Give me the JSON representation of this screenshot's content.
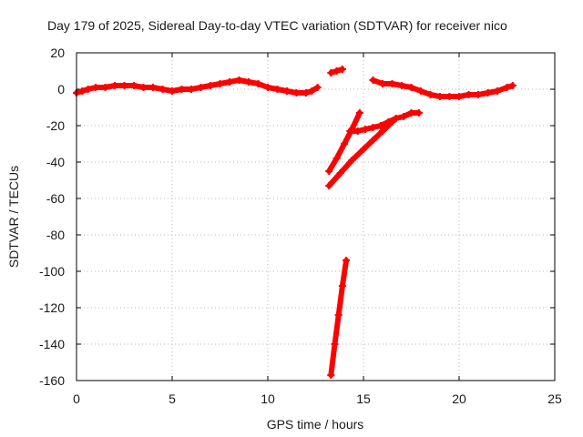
{
  "chart_data": {
    "type": "scatter",
    "title": "Day 179 of 2025, Sidereal Day-to-day VTEC variation (SDTVAR) for receiver nico",
    "xlabel": "GPS time / hours",
    "ylabel": "SDTVAR / TECUs",
    "xlim": [
      0,
      25
    ],
    "ylim": [
      -160,
      20
    ],
    "xticks": [
      0,
      5,
      10,
      15,
      20,
      25
    ],
    "yticks": [
      20,
      0,
      -20,
      -40,
      -60,
      -80,
      -100,
      -120,
      -140,
      -160
    ],
    "grid": true,
    "marker_color": "#ff0000",
    "marker": "plus",
    "series": [
      {
        "x": [
          0.0,
          0.3,
          0.6,
          1.0,
          1.5,
          2.0,
          2.5,
          3.0,
          3.5,
          4.0,
          4.5,
          5.0,
          5.5,
          6.0,
          6.5,
          7.0,
          7.5,
          8.0,
          8.5,
          9.0,
          9.5,
          10.0,
          10.5,
          11.0,
          11.5,
          12.0,
          12.3,
          12.6
        ],
        "y": [
          -2,
          -1,
          0,
          1,
          1,
          2,
          2,
          2,
          1,
          1,
          0,
          -1,
          0,
          0,
          1,
          2,
          3,
          4,
          5,
          4,
          3,
          1,
          0,
          -1,
          -2,
          -2,
          -1,
          1
        ]
      },
      {
        "x": [
          13.3,
          13.6,
          13.9
        ],
        "y": [
          9,
          10,
          11
        ]
      },
      {
        "x": [
          15.5,
          16.0,
          16.5,
          17.0,
          17.5,
          18.0,
          18.5,
          19.0,
          19.5,
          20.0,
          20.5,
          21.0,
          21.5,
          22.0,
          22.5,
          22.8
        ],
        "y": [
          5,
          3,
          3,
          2,
          1,
          -1,
          -3,
          -4,
          -4,
          -4,
          -3,
          -3,
          -2,
          -1,
          1,
          2
        ]
      },
      {
        "x": [
          13.2,
          13.6,
          14.0,
          14.4,
          14.8
        ],
        "y": [
          -45,
          -38,
          -30,
          -22,
          -13
        ]
      },
      {
        "x": [
          14.3,
          14.7,
          15.1,
          15.5,
          15.9,
          16.3,
          16.7,
          17.1,
          17.5,
          17.9
        ],
        "y": [
          -23,
          -23,
          -22,
          -21,
          -20,
          -18,
          -16,
          -15,
          -13,
          -13
        ]
      },
      {
        "x": [
          13.2,
          13.8,
          14.4,
          15.0,
          15.5,
          16.0,
          16.5
        ],
        "y": [
          -53,
          -46,
          -39,
          -33,
          -28,
          -23,
          -18
        ]
      },
      {
        "x": [
          13.3,
          13.5,
          13.7,
          13.9,
          14.1
        ],
        "y": [
          -157,
          -140,
          -124,
          -108,
          -94
        ]
      }
    ]
  }
}
